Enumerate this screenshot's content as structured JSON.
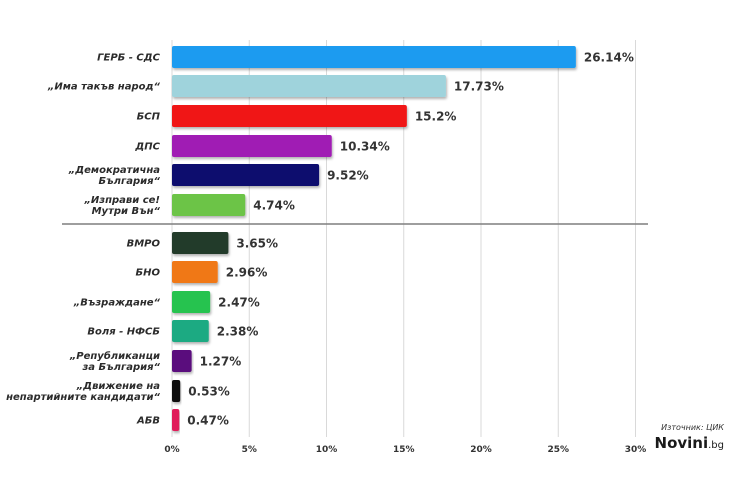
{
  "chart_data": {
    "type": "bar",
    "orientation": "horizontal",
    "categories": [
      [
        "ГЕРБ - СДС"
      ],
      [
        "„Има такъв народ“"
      ],
      [
        "БСП"
      ],
      [
        "ДПС"
      ],
      [
        "„Демократична",
        "България“"
      ],
      [
        "„Изправи се!",
        "Мутри Вън“"
      ],
      [
        "ВМРО"
      ],
      [
        "БНО"
      ],
      [
        "„Възраждане“"
      ],
      [
        "Воля - НФСБ"
      ],
      [
        "„Републиканци",
        "за България“"
      ],
      [
        "„Движение на",
        "непартийните кандидати“"
      ],
      [
        "АБВ"
      ]
    ],
    "values": [
      26.14,
      17.73,
      15.2,
      10.34,
      9.52,
      4.74,
      3.65,
      2.96,
      2.47,
      2.38,
      1.27,
      0.53,
      0.47
    ],
    "value_labels": [
      "26.14%",
      "17.73%",
      "15.2%",
      "10.34%",
      "9.52%",
      "4.74%",
      "3.65%",
      "2.96%",
      "2.47%",
      "2.38%",
      "1.27%",
      "0.53%",
      "0.47%"
    ],
    "colors": [
      "#1e9bf0",
      "#9fd3dc",
      "#f01414",
      "#a01eb4",
      "#0a0f6e",
      "#6cc446",
      "#223a2a",
      "#f07814",
      "#28c350",
      "#1eaa82",
      "#5a0f7d",
      "#0a0a0a",
      "#e01e5a"
    ],
    "xlim": [
      0,
      30
    ],
    "xticks": [
      "0%",
      "5%",
      "10%",
      "15%",
      "20%",
      "25%",
      "30%"
    ],
    "xtick_values": [
      0,
      5,
      10,
      15,
      20,
      25,
      30
    ],
    "separator_after_index": 5,
    "grid": true
  },
  "source": "Източник: ЦИК",
  "logo": {
    "name": "Novini",
    "suffix": ".bg"
  }
}
